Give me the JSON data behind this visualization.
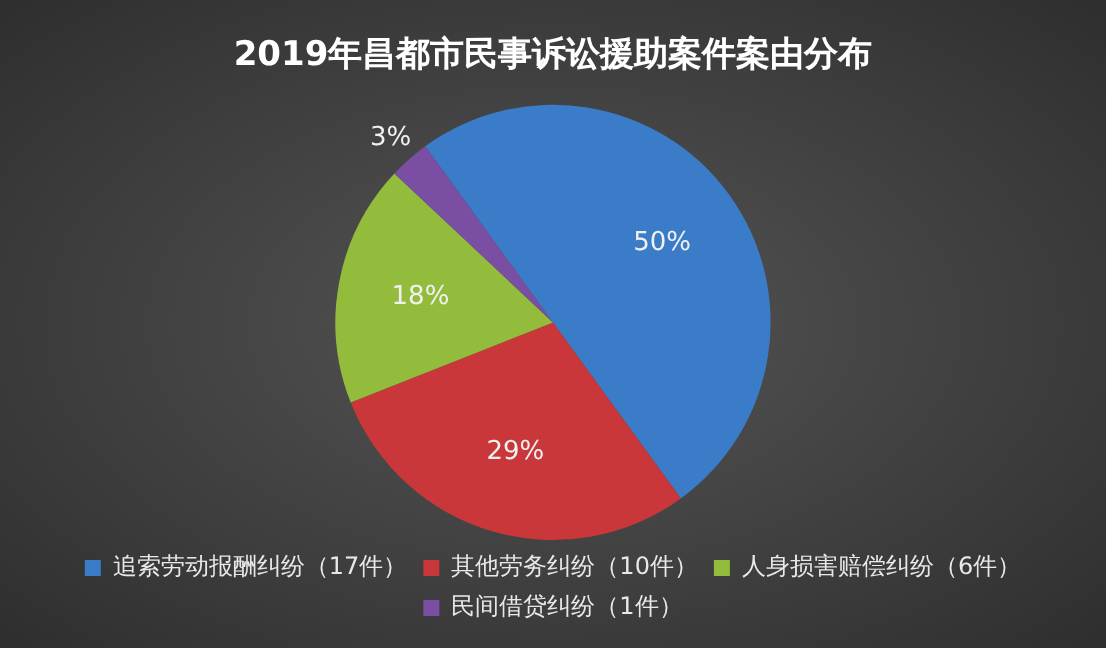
{
  "chart_data": {
    "type": "pie",
    "title": "2019年昌都市民事诉讼援助案件案由分布",
    "categories": [
      "追索劳动报酬纠纷（17件）",
      "其他劳务纠纷（10件）",
      "人身损害赔偿纠纷（6件）",
      "民间借贷纠纷（1件）"
    ],
    "values": [
      50,
      29,
      18,
      3
    ],
    "colors": [
      "#3b7cc9",
      "#c9373a",
      "#93bb3c",
      "#7a4ea3"
    ],
    "value_labels": [
      "50%",
      "29%",
      "18%",
      "3%"
    ],
    "legend": "bottom"
  }
}
